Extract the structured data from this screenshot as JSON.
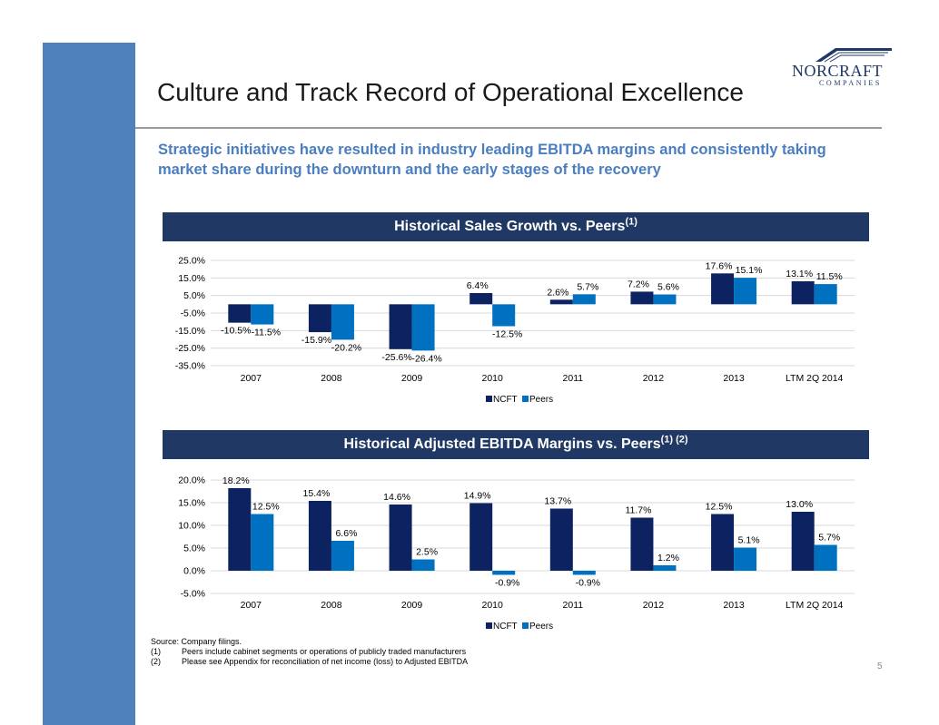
{
  "page": {
    "title": "Culture and Track Record of Operational Excellence",
    "subtitle": "Strategic initiatives have resulted in industry leading EBITDA margins and consistently taking market share during the downturn and the early stages of the recovery",
    "logo": {
      "name": "NORCRAFT",
      "sub": "COMPANIES"
    },
    "page_number": "5",
    "footnotes": {
      "source": "Source: Company filings.",
      "items": [
        {
          "num": "(1)",
          "text": "Peers include cabinet segments or operations of publicly traded manufacturers"
        },
        {
          "num": "(2)",
          "text": "Please see Appendix for reconciliation of net income (loss) to Adjusted EBITDA"
        }
      ]
    },
    "colors": {
      "ncft": "#0d2260",
      "peers": "#0070c0",
      "accent_bar": "#4f81bd",
      "band": "#1f3864"
    }
  },
  "chart_data": [
    {
      "type": "bar",
      "title": "Historical Sales Growth vs. Peers",
      "title_sup": "(1)",
      "categories": [
        "2007",
        "2008",
        "2009",
        "2010",
        "2011",
        "2012",
        "2013",
        "LTM 2Q 2014"
      ],
      "series": [
        {
          "name": "NCFT",
          "values": [
            -10.5,
            -15.9,
            -25.6,
            6.4,
            2.6,
            7.2,
            17.6,
            13.1
          ]
        },
        {
          "name": "Peers",
          "values": [
            -11.5,
            -20.2,
            -26.4,
            -12.5,
            5.7,
            5.6,
            15.1,
            11.5
          ]
        }
      ],
      "yticks": [
        25,
        15,
        5,
        -5,
        -15,
        -25,
        -35
      ],
      "ylim": [
        -35,
        25
      ],
      "value_format": "percent1",
      "legend_position": "bottom"
    },
    {
      "type": "bar",
      "title": "Historical Adjusted EBITDA Margins vs. Peers",
      "title_sup": "(1) (2)",
      "categories": [
        "2007",
        "2008",
        "2009",
        "2010",
        "2011",
        "2012",
        "2013",
        "LTM 2Q 2014"
      ],
      "series": [
        {
          "name": "NCFT",
          "values": [
            18.2,
            15.4,
            14.6,
            14.9,
            13.7,
            11.7,
            12.5,
            13.0
          ]
        },
        {
          "name": "Peers",
          "values": [
            12.5,
            6.6,
            2.5,
            -0.9,
            -0.9,
            1.2,
            5.1,
            5.7
          ]
        }
      ],
      "yticks": [
        20,
        15,
        10,
        5,
        0,
        -5
      ],
      "ylim": [
        -5,
        20
      ],
      "value_format": "percent1",
      "legend_position": "bottom"
    }
  ]
}
